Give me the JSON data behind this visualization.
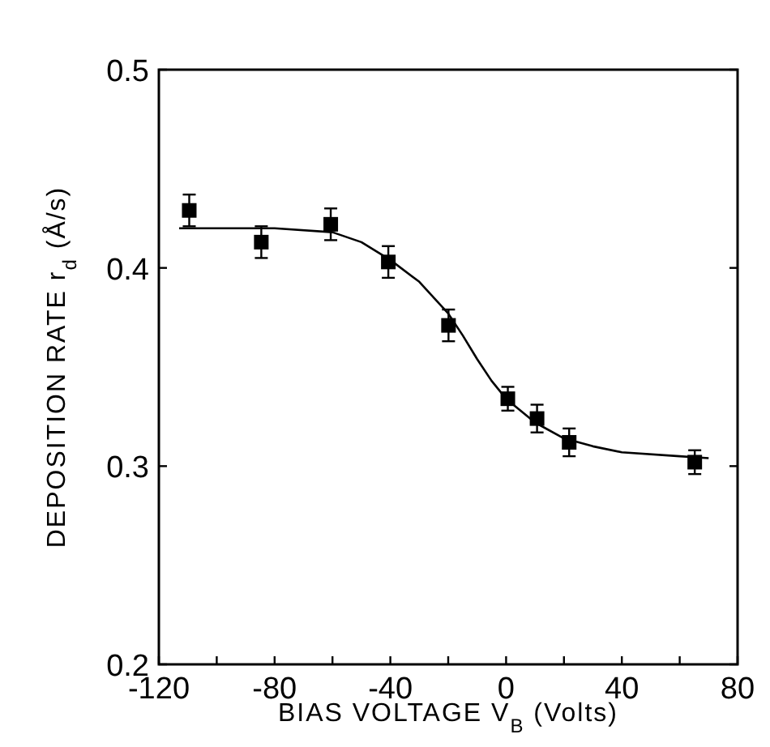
{
  "chart_data": {
    "type": "scatter",
    "xlabel": "BIAS VOLTAGE  V$_{B}$ (Volts)",
    "ylabel": "DEPOSITION RATE  r$_{d}$ (Å/s)",
    "xlim": [
      -120,
      80
    ],
    "xticks": [
      -120,
      {
        "value": -100,
        "label": null
      },
      -80,
      {
        "value": -60,
        "label": null
      },
      -40,
      {
        "value": -20,
        "label": null
      },
      0,
      {
        "value": 20,
        "label": null
      },
      40,
      {
        "value": 60,
        "label": null
      },
      80
    ],
    "ylim": [
      0.2,
      0.5
    ],
    "yticks": [
      0.2,
      0.3,
      0.4,
      0.5
    ],
    "grid": false,
    "series": [
      {
        "color": "#000000",
        "marker": "square",
        "x": [
          -109.5,
          -84.6,
          -60.6,
          -40.7,
          -19.9,
          0.6,
          10.7,
          21.8,
          65.2
        ],
        "values": [
          0.429,
          0.413,
          0.422,
          0.403,
          0.371,
          0.334,
          0.324,
          0.312,
          0.302
        ],
        "errors": [
          0.008,
          0.008,
          0.008,
          0.008,
          0.008,
          0.006,
          0.007,
          0.007,
          0.006
        ]
      },
      {
        "type": "line",
        "color": "#000000",
        "line_style": "solid",
        "x": [
          -113,
          -80,
          -60,
          -50,
          -40,
          -30,
          -20,
          -15,
          -10,
          -5,
          0,
          10,
          20,
          30,
          40,
          60,
          70
        ],
        "values": [
          0.42,
          0.42,
          0.418,
          0.413,
          0.404,
          0.393,
          0.377,
          0.366,
          0.354,
          0.343,
          0.334,
          0.322,
          0.314,
          0.31,
          0.307,
          0.305,
          0.304
        ]
      }
    ]
  }
}
